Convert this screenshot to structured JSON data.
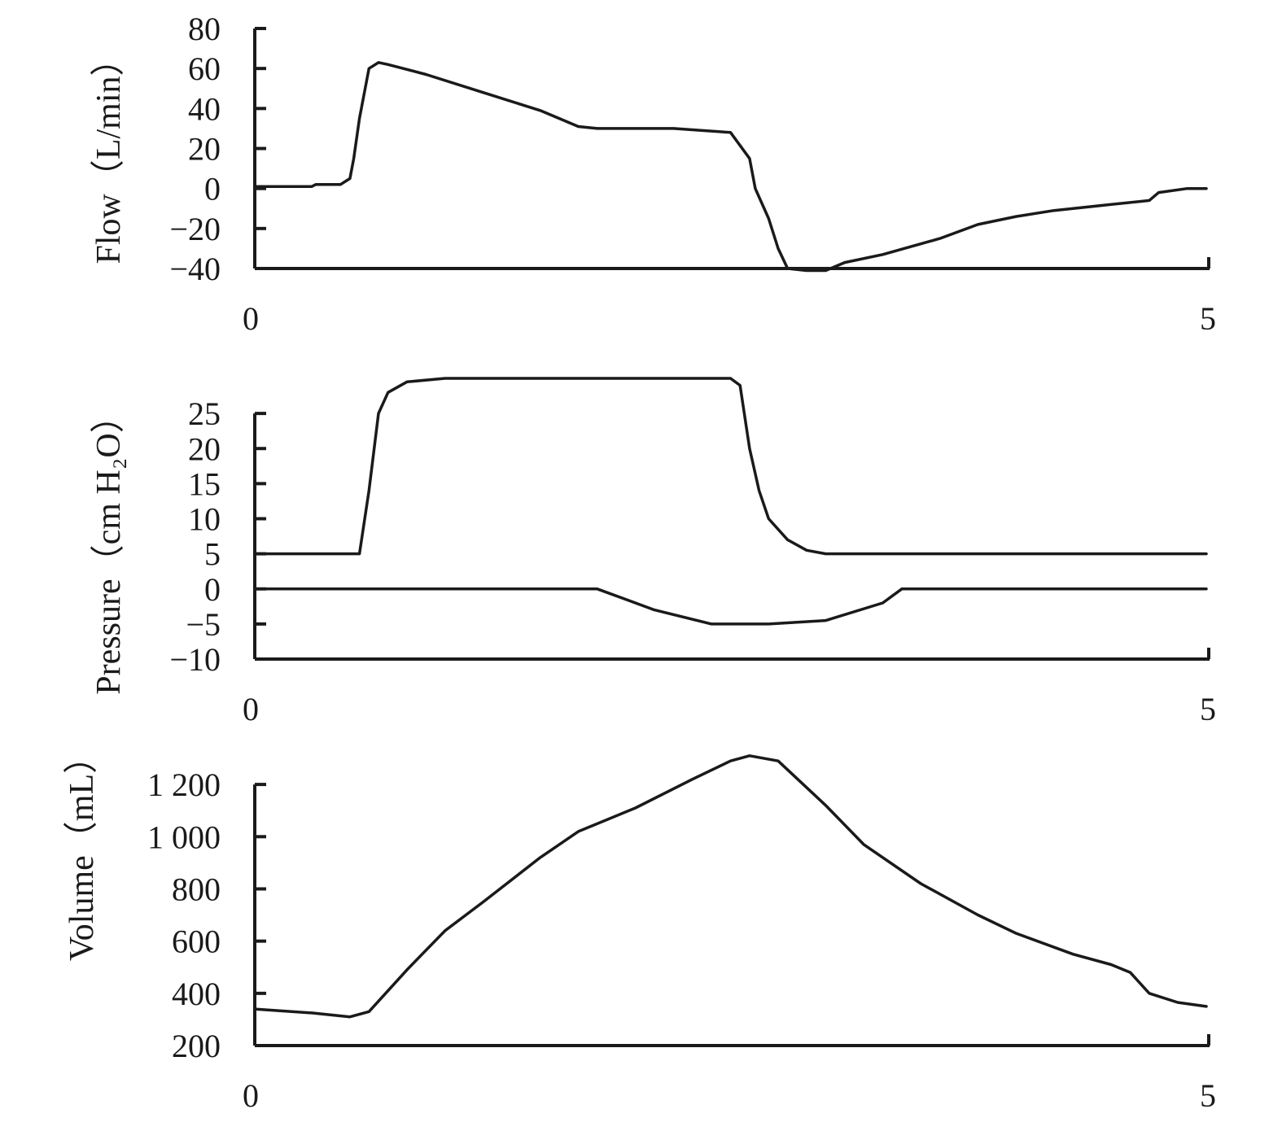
{
  "chart_data": [
    {
      "type": "line",
      "ylabel": "Flow（L/min）",
      "xlabel": "",
      "xlim": [
        0,
        5
      ],
      "ylim": [
        -40,
        80
      ],
      "x_tick_labels": [
        "0",
        "5"
      ],
      "y_tick_labels": [
        "80",
        "60",
        "40",
        "20",
        "0",
        "−20",
        "−40"
      ],
      "y_ticks": [
        80,
        60,
        40,
        20,
        0,
        -20,
        -40
      ],
      "grid": false,
      "series": [
        {
          "x": [
            0,
            0.3,
            0.32,
            0.45,
            0.5,
            0.52,
            0.55,
            0.6,
            0.65,
            0.7,
            0.9,
            1.2,
            1.5,
            1.7,
            1.8,
            2.2,
            2.5,
            2.6,
            2.63,
            2.7,
            2.75,
            2.8,
            2.9,
            3.0,
            3.1,
            3.3,
            3.6,
            3.8,
            4.0,
            4.2,
            4.5,
            4.7,
            4.75,
            4.9,
            5.0
          ],
          "values": [
            1,
            1,
            2,
            2,
            5,
            15,
            35,
            60,
            63,
            62,
            57,
            48,
            39,
            31,
            30,
            30,
            28,
            15,
            0,
            -15,
            -30,
            -40,
            -41,
            -41,
            -37,
            -33,
            -25,
            -18,
            -14,
            -11,
            -8,
            -6,
            -2,
            0,
            0
          ]
        }
      ]
    },
    {
      "type": "line",
      "ylabel": "Pressure（cm H₂O）",
      "xlabel": "",
      "xlim": [
        0,
        5
      ],
      "ylim": [
        -10,
        30
      ],
      "x_tick_labels": [
        "0",
        "5"
      ],
      "y_tick_labels": [
        "25",
        "20",
        "15",
        "10",
        "5",
        "0",
        "−5",
        "−10"
      ],
      "y_ticks": [
        25,
        20,
        15,
        10,
        5,
        0,
        -5,
        -10
      ],
      "grid": false,
      "series": [
        {
          "x": [
            0,
            0.55,
            0.6,
            0.65,
            0.7,
            0.8,
            1.0,
            2.5,
            2.55,
            2.6,
            2.65,
            2.7,
            2.8,
            2.9,
            3.0,
            5.0
          ],
          "values": [
            5,
            5,
            14,
            25,
            28,
            29.5,
            30,
            30,
            29,
            20,
            14,
            10,
            7,
            5.5,
            5,
            5
          ]
        },
        {
          "x": [
            0,
            1.8,
            2.1,
            2.4,
            2.7,
            3.0,
            3.3,
            3.4,
            5.0
          ],
          "values": [
            0,
            0,
            -3,
            -5,
            -5,
            -4.5,
            -2,
            0,
            0
          ]
        }
      ]
    },
    {
      "type": "line",
      "ylabel": "Volume（mL）",
      "xlabel": "",
      "xlim": [
        0,
        5
      ],
      "ylim": [
        200,
        1300
      ],
      "x_tick_labels": [
        "0",
        "5"
      ],
      "y_tick_labels": [
        "1 200",
        "1 000",
        "800",
        "600",
        "400",
        "200"
      ],
      "y_ticks": [
        1200,
        1000,
        800,
        600,
        400,
        200
      ],
      "grid": false,
      "series": [
        {
          "x": [
            0,
            0.3,
            0.5,
            0.6,
            0.8,
            1.0,
            1.2,
            1.5,
            1.7,
            2.0,
            2.3,
            2.5,
            2.6,
            2.75,
            3.0,
            3.2,
            3.5,
            3.8,
            4.0,
            4.3,
            4.5,
            4.6,
            4.7,
            4.85,
            5.0
          ],
          "values": [
            340,
            325,
            310,
            330,
            490,
            640,
            750,
            920,
            1020,
            1110,
            1220,
            1290,
            1310,
            1290,
            1120,
            970,
            820,
            700,
            630,
            550,
            510,
            480,
            400,
            365,
            350
          ]
        }
      ]
    }
  ]
}
